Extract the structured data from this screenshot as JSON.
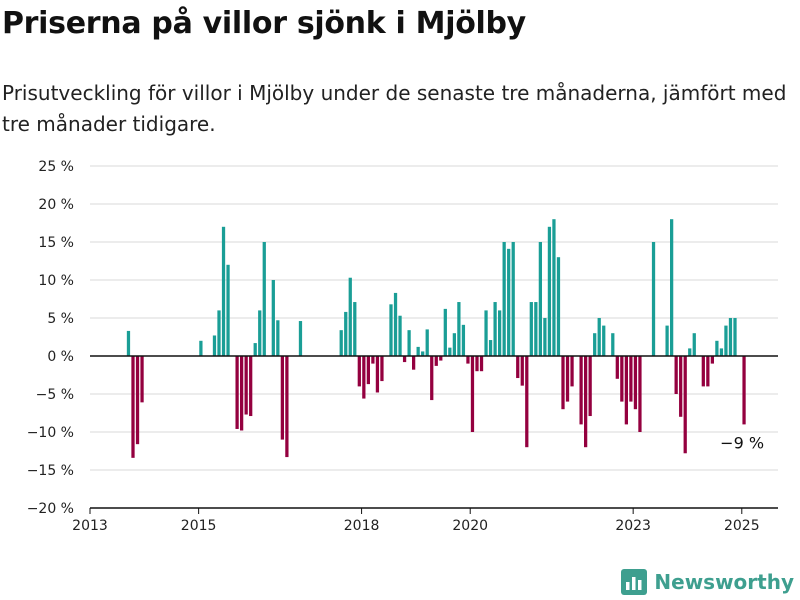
{
  "title": "Priserna på villor sjönk i Mjölby",
  "subtitle": "Prisutveckling för villor i Mjölby under de senaste tre månaderna, jämfört med tre månader tidigare.",
  "brand": "Newsworthy",
  "colors": {
    "positive": "#1a9e96",
    "negative": "#94003f",
    "axis": "#111111",
    "grid": "#d9d9d9",
    "brand": "#3e9f8f"
  },
  "chart_data": {
    "type": "bar",
    "x_type": "date",
    "ylim": [
      -20,
      25
    ],
    "xlim": [
      "2013-01",
      "2025-09"
    ],
    "y_ticks": [
      -20,
      -15,
      -10,
      -5,
      0,
      5,
      10,
      15,
      20,
      25
    ],
    "y_tick_labels": [
      "−20 %",
      "−15 %",
      "−10 %",
      "−5 %",
      "0 %",
      "5 %",
      "10 %",
      "15 %",
      "20 %",
      "25 %"
    ],
    "x_ticks": [
      "2013-01",
      "2015-01",
      "2018-01",
      "2020-01",
      "2023-01",
      "2025-01"
    ],
    "x_tick_labels": [
      "2013",
      "2015",
      "2018",
      "2020",
      "2023",
      "2025"
    ],
    "grid": true,
    "annotation": {
      "label": "−9 %",
      "x": "2025-01",
      "y": -9
    },
    "points": [
      {
        "x": "2013-09",
        "y": 3.3
      },
      {
        "x": "2013-10",
        "y": -13.4
      },
      {
        "x": "2013-11",
        "y": -11.6
      },
      {
        "x": "2013-12",
        "y": -6.1
      },
      {
        "x": "2015-01",
        "y": 2
      },
      {
        "x": "2015-04",
        "y": 2.7
      },
      {
        "x": "2015-05",
        "y": 6
      },
      {
        "x": "2015-06",
        "y": 17
      },
      {
        "x": "2015-07",
        "y": 12
      },
      {
        "x": "2015-09",
        "y": -9.6
      },
      {
        "x": "2015-10",
        "y": -9.8
      },
      {
        "x": "2015-11",
        "y": -7.7
      },
      {
        "x": "2015-12",
        "y": -7.9
      },
      {
        "x": "2016-01",
        "y": 1.7
      },
      {
        "x": "2016-02",
        "y": 6
      },
      {
        "x": "2016-03",
        "y": 15
      },
      {
        "x": "2016-05",
        "y": 10
      },
      {
        "x": "2016-06",
        "y": 4.7
      },
      {
        "x": "2016-07",
        "y": -11
      },
      {
        "x": "2016-08",
        "y": -13.3
      },
      {
        "x": "2016-11",
        "y": 4.6
      },
      {
        "x": "2017-08",
        "y": 3.4
      },
      {
        "x": "2017-09",
        "y": 5.8
      },
      {
        "x": "2017-10",
        "y": 10.3
      },
      {
        "x": "2017-11",
        "y": 7.1
      },
      {
        "x": "2017-12",
        "y": -4
      },
      {
        "x": "2018-01",
        "y": -5.6
      },
      {
        "x": "2018-02",
        "y": -3.7
      },
      {
        "x": "2018-03",
        "y": -1
      },
      {
        "x": "2018-04",
        "y": -4.8
      },
      {
        "x": "2018-05",
        "y": -3.3
      },
      {
        "x": "2018-07",
        "y": 6.8
      },
      {
        "x": "2018-08",
        "y": 8.3
      },
      {
        "x": "2018-09",
        "y": 5.3
      },
      {
        "x": "2018-10",
        "y": -0.8
      },
      {
        "x": "2018-11",
        "y": 3.4
      },
      {
        "x": "2018-12",
        "y": -1.8
      },
      {
        "x": "2019-01",
        "y": 1.2
      },
      {
        "x": "2019-02",
        "y": 0.6
      },
      {
        "x": "2019-03",
        "y": 3.5
      },
      {
        "x": "2019-04",
        "y": -5.8
      },
      {
        "x": "2019-05",
        "y": -1.3
      },
      {
        "x": "2019-06",
        "y": -0.6
      },
      {
        "x": "2019-07",
        "y": 6.2
      },
      {
        "x": "2019-08",
        "y": 1.1
      },
      {
        "x": "2019-09",
        "y": 3
      },
      {
        "x": "2019-10",
        "y": 7.1
      },
      {
        "x": "2019-11",
        "y": 4.1
      },
      {
        "x": "2019-12",
        "y": -1
      },
      {
        "x": "2020-01",
        "y": -10
      },
      {
        "x": "2020-02",
        "y": -2
      },
      {
        "x": "2020-03",
        "y": -2
      },
      {
        "x": "2020-04",
        "y": 6
      },
      {
        "x": "2020-05",
        "y": 2.1
      },
      {
        "x": "2020-06",
        "y": 7.1
      },
      {
        "x": "2020-07",
        "y": 6
      },
      {
        "x": "2020-08",
        "y": 15
      },
      {
        "x": "2020-09",
        "y": 14.1
      },
      {
        "x": "2020-10",
        "y": 15
      },
      {
        "x": "2020-11",
        "y": -2.9
      },
      {
        "x": "2020-12",
        "y": -3.9
      },
      {
        "x": "2021-01",
        "y": -12
      },
      {
        "x": "2021-02",
        "y": 7.1
      },
      {
        "x": "2021-03",
        "y": 7.1
      },
      {
        "x": "2021-04",
        "y": 15
      },
      {
        "x": "2021-05",
        "y": 5
      },
      {
        "x": "2021-06",
        "y": 17
      },
      {
        "x": "2021-07",
        "y": 18
      },
      {
        "x": "2021-08",
        "y": 13
      },
      {
        "x": "2021-09",
        "y": -7
      },
      {
        "x": "2021-10",
        "y": -6
      },
      {
        "x": "2021-11",
        "y": -4
      },
      {
        "x": "2022-01",
        "y": -9
      },
      {
        "x": "2022-02",
        "y": -12
      },
      {
        "x": "2022-03",
        "y": -7.9
      },
      {
        "x": "2022-04",
        "y": 3
      },
      {
        "x": "2022-05",
        "y": 5
      },
      {
        "x": "2022-06",
        "y": 4
      },
      {
        "x": "2022-08",
        "y": 3
      },
      {
        "x": "2022-09",
        "y": -3
      },
      {
        "x": "2022-10",
        "y": -6
      },
      {
        "x": "2022-11",
        "y": -9
      },
      {
        "x": "2022-12",
        "y": -6
      },
      {
        "x": "2023-01",
        "y": -7
      },
      {
        "x": "2023-02",
        "y": -10
      },
      {
        "x": "2023-05",
        "y": 15
      },
      {
        "x": "2023-08",
        "y": 4
      },
      {
        "x": "2023-09",
        "y": 18
      },
      {
        "x": "2023-10",
        "y": -5
      },
      {
        "x": "2023-11",
        "y": -8
      },
      {
        "x": "2023-12",
        "y": -12.8
      },
      {
        "x": "2024-01",
        "y": 1
      },
      {
        "x": "2024-02",
        "y": 3
      },
      {
        "x": "2024-04",
        "y": -4
      },
      {
        "x": "2024-05",
        "y": -4
      },
      {
        "x": "2024-06",
        "y": -1
      },
      {
        "x": "2024-07",
        "y": 2
      },
      {
        "x": "2024-08",
        "y": 1
      },
      {
        "x": "2024-09",
        "y": 4
      },
      {
        "x": "2024-10",
        "y": 5
      },
      {
        "x": "2024-11",
        "y": 5
      },
      {
        "x": "2025-01",
        "y": -9
      }
    ]
  }
}
